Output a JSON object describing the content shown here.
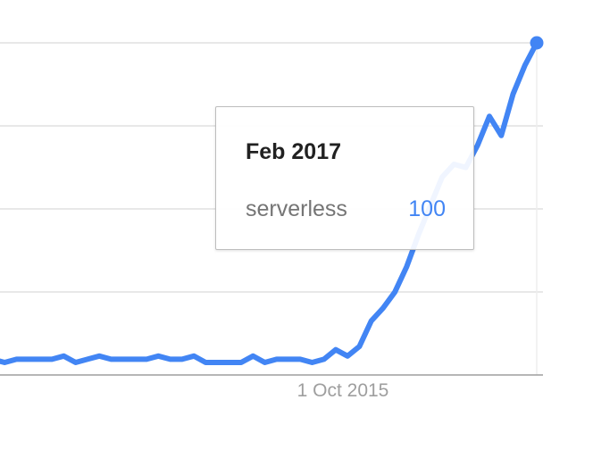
{
  "chart_data": {
    "type": "line",
    "title": "",
    "xlabel": "",
    "ylabel": "",
    "x_tick_labels": [
      "1 Oct 2015"
    ],
    "ylim": [
      0,
      100
    ],
    "grid": true,
    "series": [
      {
        "name": "serverless",
        "color": "#4285f4",
        "values": [
          1,
          0,
          1,
          1,
          1,
          1,
          2,
          0,
          1,
          2,
          1,
          1,
          1,
          1,
          2,
          1,
          1,
          2,
          0,
          0,
          0,
          0,
          2,
          0,
          1,
          1,
          1,
          0,
          1,
          4,
          2,
          5,
          13,
          17,
          22,
          30,
          40,
          49,
          58,
          62,
          61,
          68,
          77,
          71,
          84,
          93,
          100
        ]
      }
    ]
  },
  "tooltip": {
    "title": "Feb 2017",
    "series_name": "serverless",
    "value": "100"
  }
}
